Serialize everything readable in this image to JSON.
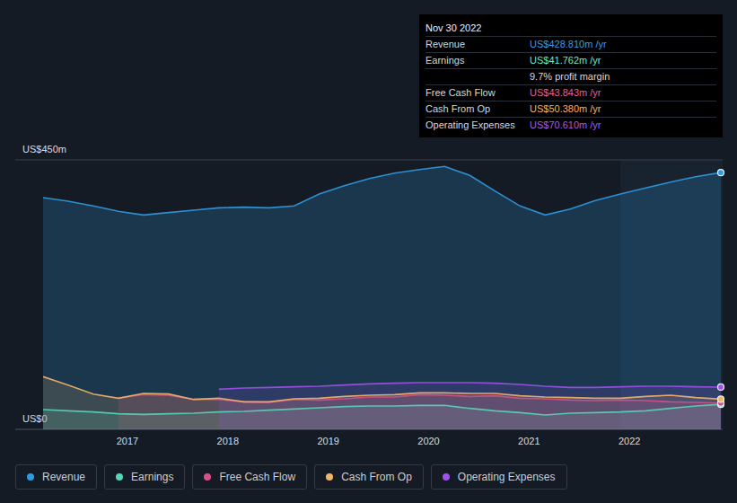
{
  "chart_data": {
    "type": "area",
    "x": [
      2016.16,
      2016.41,
      2016.66,
      2016.91,
      2017.16,
      2017.41,
      2017.66,
      2017.91,
      2018.16,
      2018.41,
      2018.66,
      2018.91,
      2019.16,
      2019.41,
      2019.66,
      2019.91,
      2020.16,
      2020.41,
      2020.66,
      2020.91,
      2021.16,
      2021.41,
      2021.66,
      2021.91,
      2022.16,
      2022.41,
      2022.66,
      2022.91
    ],
    "series": [
      {
        "name": "Revenue",
        "color": "#2f9be3",
        "marker": "last-point",
        "values": [
          387,
          381,
          373,
          364,
          358,
          362,
          366,
          370,
          371,
          370,
          373,
          393,
          407,
          419,
          428,
          434,
          439,
          424,
          398,
          373,
          358,
          368,
          382,
          393,
          403,
          413,
          422,
          428.81
        ]
      },
      {
        "name": "Earnings",
        "color": "#56d5b8",
        "marker": "last-point",
        "values": [
          33,
          31,
          29,
          26,
          25,
          26,
          27,
          29,
          30,
          32,
          34,
          36,
          38,
          39,
          39,
          40,
          40,
          35,
          31,
          28,
          24,
          27,
          28,
          29,
          31,
          35,
          39,
          41.762
        ]
      },
      {
        "name": "Free Cash Flow",
        "color": "#d65087",
        "marker": "last-point",
        "values": [
          null,
          null,
          null,
          52,
          58,
          57,
          50,
          50,
          46,
          45,
          50,
          49,
          51,
          54,
          54,
          58,
          57,
          55,
          56,
          52,
          51,
          49,
          48,
          49,
          48,
          46,
          45,
          43.843
        ]
      },
      {
        "name": "Cash From Op",
        "color": "#f1b567",
        "marker": "last-point",
        "values": [
          88,
          74,
          59,
          52,
          60,
          59,
          50,
          52,
          46,
          46,
          51,
          52,
          55,
          57,
          58,
          61,
          61,
          60,
          60,
          56,
          54,
          53,
          52,
          52,
          55,
          57,
          53,
          50.38
        ]
      },
      {
        "name": "Operating Expenses",
        "color": "#9e52e8",
        "marker": "last-point",
        "values": [
          null,
          null,
          null,
          null,
          null,
          null,
          null,
          67,
          69,
          70,
          71,
          72,
          74,
          76,
          77,
          78,
          78,
          78,
          77,
          75,
          72,
          70,
          70,
          71,
          72,
          72,
          71,
          70.61
        ]
      }
    ],
    "xlim": [
      2016.16,
      2022.91
    ],
    "xticks": [
      2017,
      2018,
      2019,
      2020,
      2021,
      2022
    ],
    "ylim": [
      0,
      450
    ],
    "yticks": [
      {
        "value": 0,
        "label": "US$0"
      },
      {
        "value": 450,
        "label": "US$450m"
      }
    ],
    "grid": true,
    "legend": "bottom-left",
    "highlight_start": 2021.91,
    "tooltip": {
      "title": "Nov 30 2022",
      "rows": [
        {
          "label": "Revenue",
          "value": "US$428.810m /yr",
          "color": "#3d9ae8"
        },
        {
          "label": "Earnings",
          "value": "US$41.762m /yr",
          "color": "#6ee8cf"
        },
        {
          "value": "9.7% profit margin",
          "color": "#d6d9dd"
        },
        {
          "label": "Free Cash Flow",
          "value": "US$43.843m /yr",
          "color": "#e5609a"
        },
        {
          "label": "Cash From Op",
          "value": "US$50.380m /yr",
          "color": "#f5b56a"
        },
        {
          "label": "Operating Expenses",
          "value": "US$70.610m /yr",
          "color": "#a45ef0"
        }
      ]
    }
  }
}
